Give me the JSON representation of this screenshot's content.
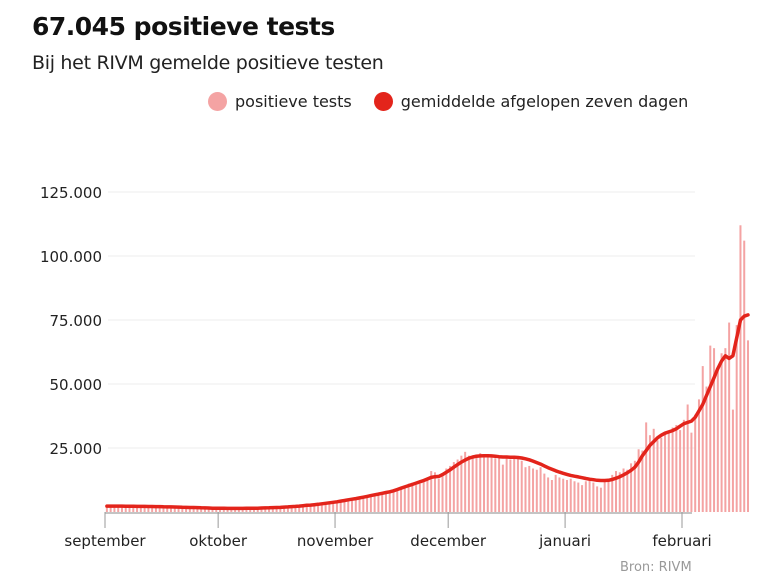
{
  "header": {
    "title": "67.045 positieve tests",
    "subtitle": "Bij het RIVM gemelde positieve testen"
  },
  "legend": [
    {
      "label": "positieve tests",
      "color": "#f4a3a3"
    },
    {
      "label": "gemiddelde afgelopen zeven dagen",
      "color": "#e3241b"
    }
  ],
  "source": "Bron: RIVM",
  "chart_data": {
    "type": "bar",
    "title": "67.045 positieve tests",
    "subtitle": "Bij het RIVM gemelde positieve testen",
    "xlabel": "",
    "ylabel": "",
    "ylim": [
      0,
      125000
    ],
    "yticks": [
      25000,
      50000,
      75000,
      100000,
      125000
    ],
    "ytick_labels": [
      "25.000",
      "50.000",
      "75.000",
      "100.000",
      "125.000"
    ],
    "grid": true,
    "legend_position": "top-right",
    "x_start": "1 september",
    "x_ticks": [
      {
        "label": "september",
        "day": 0
      },
      {
        "label": "oktober",
        "day": 30
      },
      {
        "label": "november",
        "day": 61
      },
      {
        "label": "december",
        "day": 91
      },
      {
        "label": "januari",
        "day": 122
      },
      {
        "label": "februari",
        "day": 153
      }
    ],
    "series": [
      {
        "name": "positieve tests",
        "type": "bar",
        "color": "#f4a3a3",
        "values": [
          2300,
          2200,
          2100,
          2400,
          2200,
          2000,
          1800,
          2300,
          2200,
          2100,
          2300,
          2100,
          1900,
          1700,
          2200,
          2100,
          2000,
          2100,
          1900,
          1700,
          1500,
          1900,
          1800,
          1700,
          1700,
          1500,
          1300,
          1200,
          1600,
          1500,
          1400,
          1500,
          1300,
          1200,
          1100,
          1500,
          1500,
          1400,
          1500,
          1400,
          1300,
          1300,
          1700,
          1700,
          1600,
          1900,
          1800,
          1700,
          1800,
          2300,
          2400,
          2500,
          2700,
          2600,
          2500,
          2700,
          3200,
          3400,
          3600,
          3900,
          4000,
          4200,
          4300,
          4500,
          5100,
          5300,
          5600,
          5500,
          5800,
          6200,
          6500,
          7100,
          7400,
          7700,
          7600,
          7900,
          8200,
          8500,
          9500,
          10000,
          11000,
          11500,
          10500,
          11000,
          12000,
          13500,
          16000,
          15500,
          13000,
          14500,
          17000,
          18000,
          19500,
          20500,
          22000,
          23500,
          22000,
          21000,
          22500,
          23000,
          22000,
          21500,
          22000,
          21000,
          21500,
          18500,
          21000,
          20500,
          22000,
          21500,
          20000,
          17500,
          18000,
          17000,
          16500,
          17500,
          15000,
          13500,
          12500,
          14500,
          13500,
          13000,
          12500,
          13000,
          12000,
          11500,
          10500,
          12000,
          12500,
          11500,
          10000,
          9500,
          12000,
          13000,
          14500,
          16000,
          15500,
          17000,
          16500,
          19000,
          20000,
          24500,
          24000,
          35000,
          30000,
          32500,
          28000,
          29000,
          30500,
          31000,
          33000,
          34000,
          32000,
          36000,
          42000,
          31000,
          38000,
          44000,
          57000,
          49000,
          65000,
          64000,
          55000,
          62000,
          64000,
          74000,
          40000,
          73000,
          112000,
          106000,
          67045
        ]
      },
      {
        "name": "gemiddelde afgelopen zeven dagen",
        "type": "line",
        "color": "#e3241b",
        "values": [
          2300,
          2300,
          2300,
          2300,
          2300,
          2250,
          2250,
          2250,
          2200,
          2200,
          2200,
          2150,
          2150,
          2100,
          2100,
          2050,
          2000,
          2000,
          1950,
          1900,
          1850,
          1800,
          1750,
          1750,
          1700,
          1650,
          1600,
          1550,
          1500,
          1500,
          1450,
          1450,
          1400,
          1400,
          1400,
          1400,
          1400,
          1450,
          1450,
          1500,
          1500,
          1550,
          1600,
          1650,
          1700,
          1750,
          1800,
          1900,
          2000,
          2100,
          2200,
          2300,
          2450,
          2600,
          2700,
          2850,
          3000,
          3200,
          3400,
          3600,
          3800,
          4000,
          4250,
          4500,
          4750,
          5000,
          5250,
          5500,
          5800,
          6100,
          6400,
          6700,
          7000,
          7300,
          7600,
          7900,
          8300,
          8800,
          9300,
          9800,
          10300,
          10800,
          11300,
          11800,
          12300,
          12900,
          13500,
          13800,
          13900,
          14600,
          15500,
          16500,
          17500,
          18500,
          19500,
          20300,
          21000,
          21500,
          21800,
          21900,
          22000,
          22000,
          21900,
          21800,
          21600,
          21500,
          21500,
          21400,
          21400,
          21300,
          21100,
          20800,
          20400,
          19900,
          19300,
          18700,
          18000,
          17300,
          16700,
          16100,
          15600,
          15100,
          14700,
          14300,
          14000,
          13700,
          13400,
          13100,
          12800,
          12600,
          12400,
          12300,
          12300,
          12400,
          12700,
          13200,
          13800,
          14500,
          15300,
          16300,
          17500,
          19500,
          22000,
          24000,
          26000,
          27500,
          29000,
          30000,
          30800,
          31300,
          31800,
          32500,
          33500,
          34500,
          35000,
          35500,
          37000,
          39500,
          42000,
          45500,
          49000,
          52500,
          56000,
          59000,
          61000,
          60000,
          61000,
          68000,
          75000,
          76500,
          77000
        ]
      }
    ]
  }
}
